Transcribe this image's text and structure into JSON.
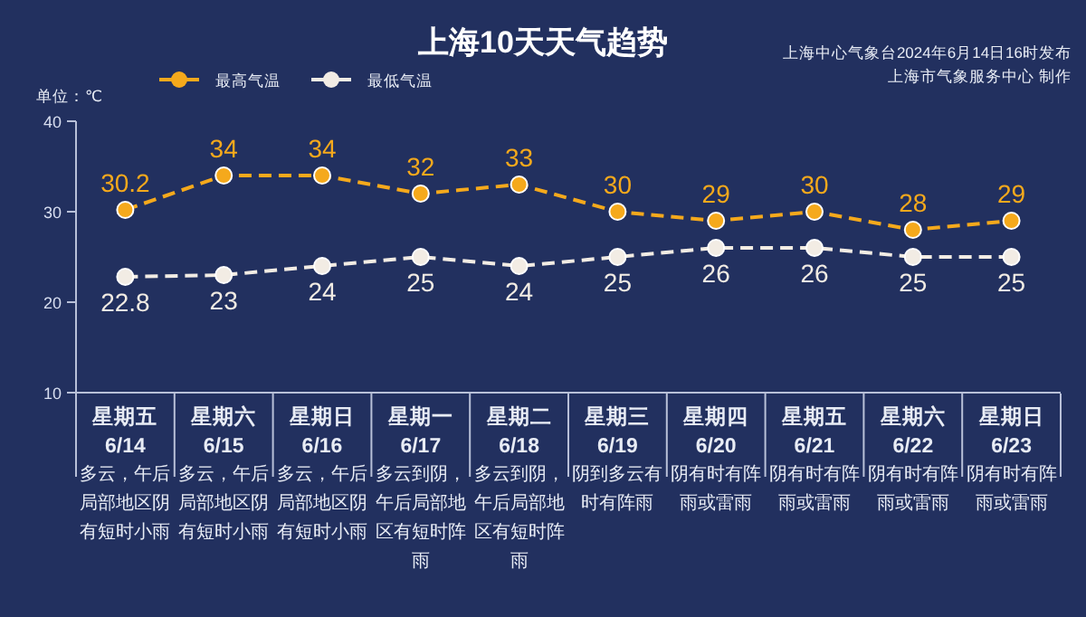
{
  "chart_data": {
    "type": "line",
    "title": "上海10天天气趋势",
    "subtitle": "上海中心气象台2024年6月14日16时发布",
    "ylabel": "单位：℃",
    "categories": [
      "星期五\n6/14",
      "星期六\n6/15",
      "星期日\n6/16",
      "星期一\n6/17",
      "星期二\n6/18",
      "星期三\n6/19",
      "星期四\n6/20",
      "星期五\n6/21",
      "星期六\n6/22",
      "星期日\n6/23"
    ],
    "series": [
      {
        "name": "最高气温",
        "color": "#f5a91c",
        "values": [
          30.2,
          34,
          34,
          32,
          33,
          30,
          29,
          30,
          28,
          29
        ]
      },
      {
        "name": "最低气温",
        "color": "#f2ece4",
        "values": [
          22.8,
          23,
          24,
          25,
          24,
          25,
          26,
          26,
          25,
          25
        ]
      }
    ],
    "ylim": [
      10,
      40
    ],
    "yticks": [
      10,
      20,
      30,
      40
    ],
    "grid": false,
    "legend": "top left",
    "marker": "circle",
    "line_style": "dashed",
    "data_labels": true,
    "annotations": [
      "上海市气象服务中心 制作",
      "多云，午后局部地区阴有短时小雨",
      "多云，午后局部地区阴有短时小雨",
      "多云，午后局部地区阴有短时小雨",
      "多云到阴，午后局部地区有短时阵雨",
      "多云到阴，午后局部地区有短时阵雨",
      "阴到多云有时有阵雨",
      "阴有时有阵雨或雷雨",
      "阴有时有阵雨或雷雨",
      "阴有时有阵雨或雷雨",
      "阴有时有阵雨或雷雨"
    ]
  }
}
